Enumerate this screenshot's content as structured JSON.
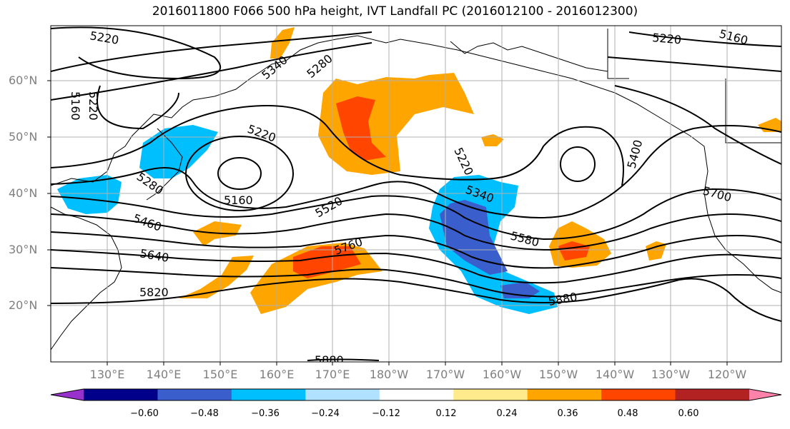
{
  "title": "2016011800 F066 500 hPa height, IVT Landfall PC (2016012100 - 2016012300)",
  "lat_labels": [
    "60°N",
    "50°N",
    "40°N",
    "30°N",
    "20°N"
  ],
  "lon_labels": [
    "130°E",
    "140°E",
    "150°E",
    "160°E",
    "170°E",
    "180°W",
    "170°W",
    "160°W",
    "150°W",
    "140°W",
    "130°W",
    "120°W"
  ],
  "contour_labels": [
    "5220",
    "5160",
    "5220",
    "5340",
    "5280",
    "5220",
    "5160",
    "5280",
    "5460",
    "5640",
    "5820",
    "5520",
    "5760",
    "5220",
    "5340",
    "5580",
    "5880",
    "5400",
    "5700",
    "5220",
    "5160",
    "5880"
  ],
  "colorbar": {
    "colors": [
      "#9932cc",
      "#00008b",
      "#3a5fcd",
      "#00bfff",
      "#b0e2ff",
      "#ffffff",
      "#ffeb8b",
      "#ffa500",
      "#ff4500",
      "#b22222",
      "#ff82ab"
    ],
    "ticks": [
      "−0.60",
      "−0.48",
      "−0.36",
      "−0.24",
      "−0.12",
      "0.12",
      "0.24",
      "0.36",
      "0.48",
      "0.60"
    ]
  }
}
